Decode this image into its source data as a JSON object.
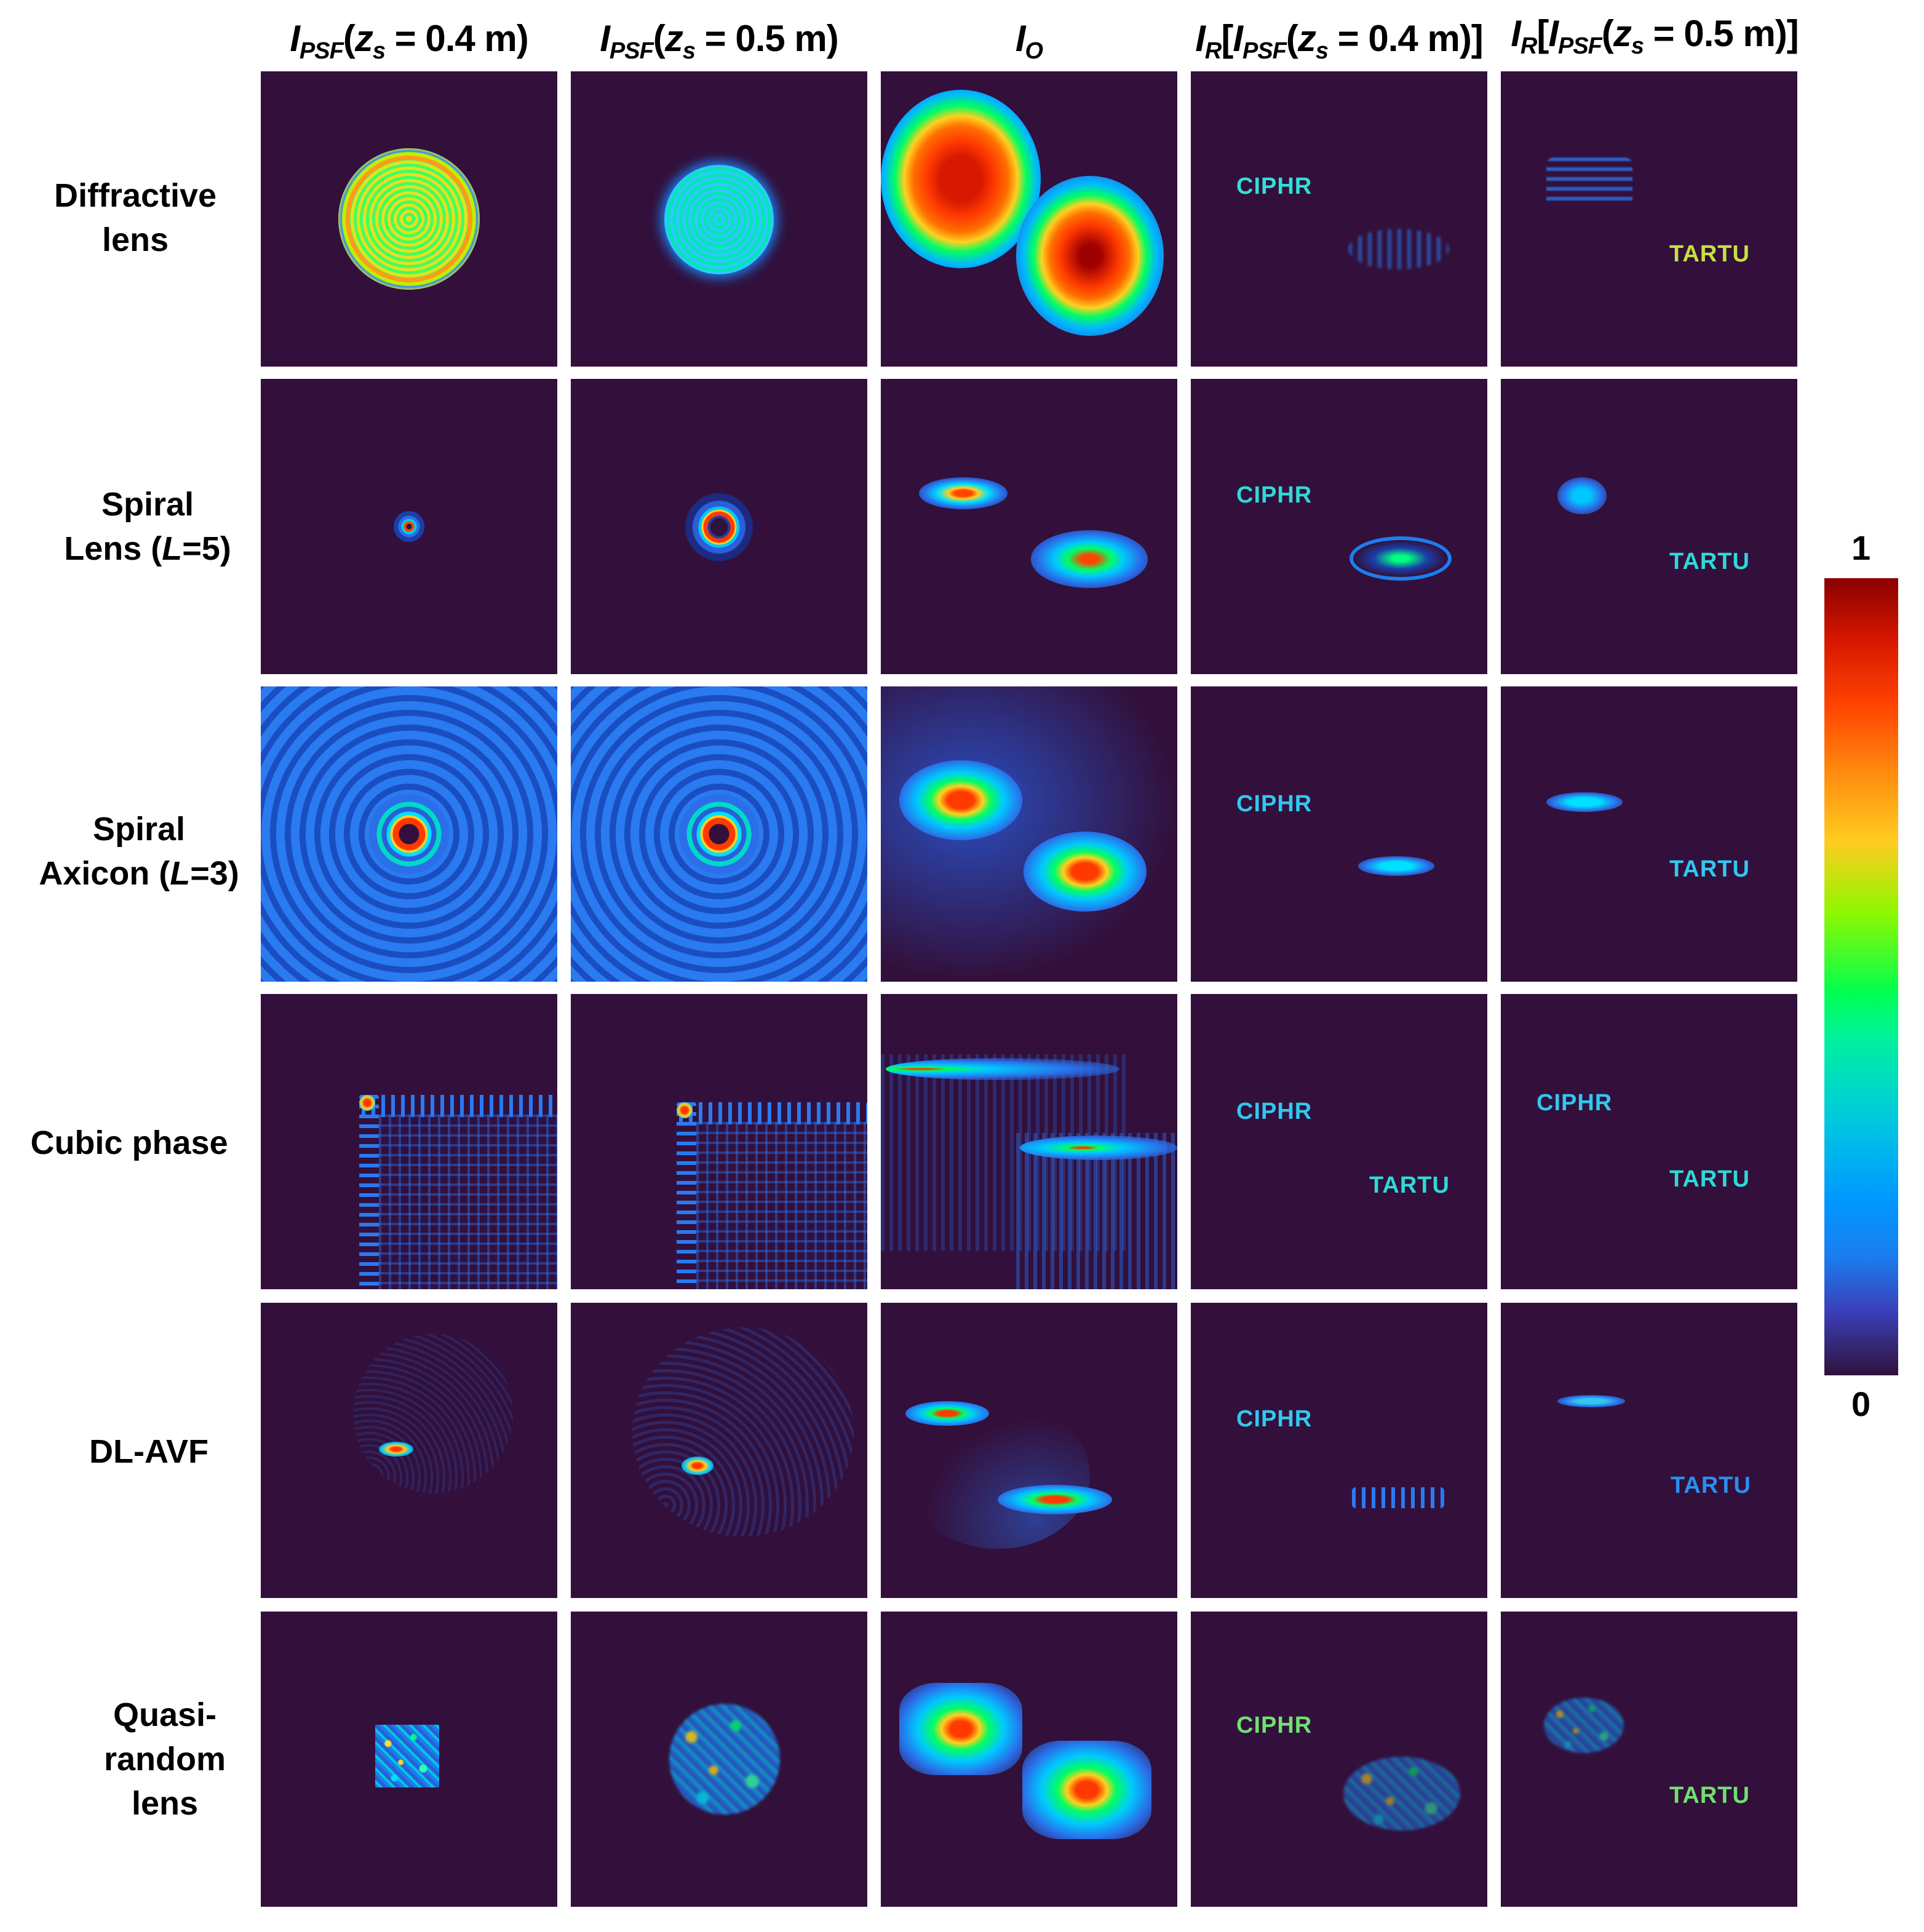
{
  "headers": [
    {
      "i": "I",
      "sub1": "PSF",
      "open": "(",
      "z": "z",
      "sub2": "s",
      "rest": " = 0.4 m)"
    },
    {
      "i": "I",
      "sub1": "PSF",
      "open": "(",
      "z": "z",
      "sub2": "s",
      "rest": " = 0.5 m)"
    },
    {
      "i": "I",
      "sub1": "O"
    },
    {
      "i": "I",
      "sub1": "R",
      "open": "[",
      "i2": "I",
      "sub3": "PSF",
      "open2": "(",
      "z": "z",
      "sub2": "s",
      "rest": " = 0.4 m)]"
    },
    {
      "i": "I",
      "sub1": "R",
      "open": "[",
      "i2": "I",
      "sub3": "PSF",
      "open2": "(",
      "z": "z",
      "sub2": "s",
      "rest": " = 0.5 m)]"
    }
  ],
  "rows": [
    {
      "lines": [
        "Diffractive",
        "lens"
      ]
    },
    {
      "lines": [
        "Spiral"
      ],
      "pre": "Lens (",
      "param": "L",
      "post": "=5)"
    },
    {
      "lines": [
        "Spiral"
      ],
      "pre": "Axicon (",
      "param": "L",
      "post": "=3)"
    },
    {
      "lines": [
        "Cubic phase"
      ]
    },
    {
      "lines": [
        "DL-AVF"
      ]
    },
    {
      "lines": [
        "Quasi-",
        "random",
        "lens"
      ]
    }
  ],
  "panel_text": {
    "object_1": "CIPHR",
    "object_2": "TARTU"
  },
  "colorbar": {
    "max_label": "1",
    "min_label": "0",
    "colormap": "jet",
    "colors": [
      "#30123b",
      "#1a7ef0",
      "#00c8e0",
      "#00ff50",
      "#ffcc20",
      "#ff4400",
      "#8a0000"
    ]
  },
  "background_color": "#32103b"
}
